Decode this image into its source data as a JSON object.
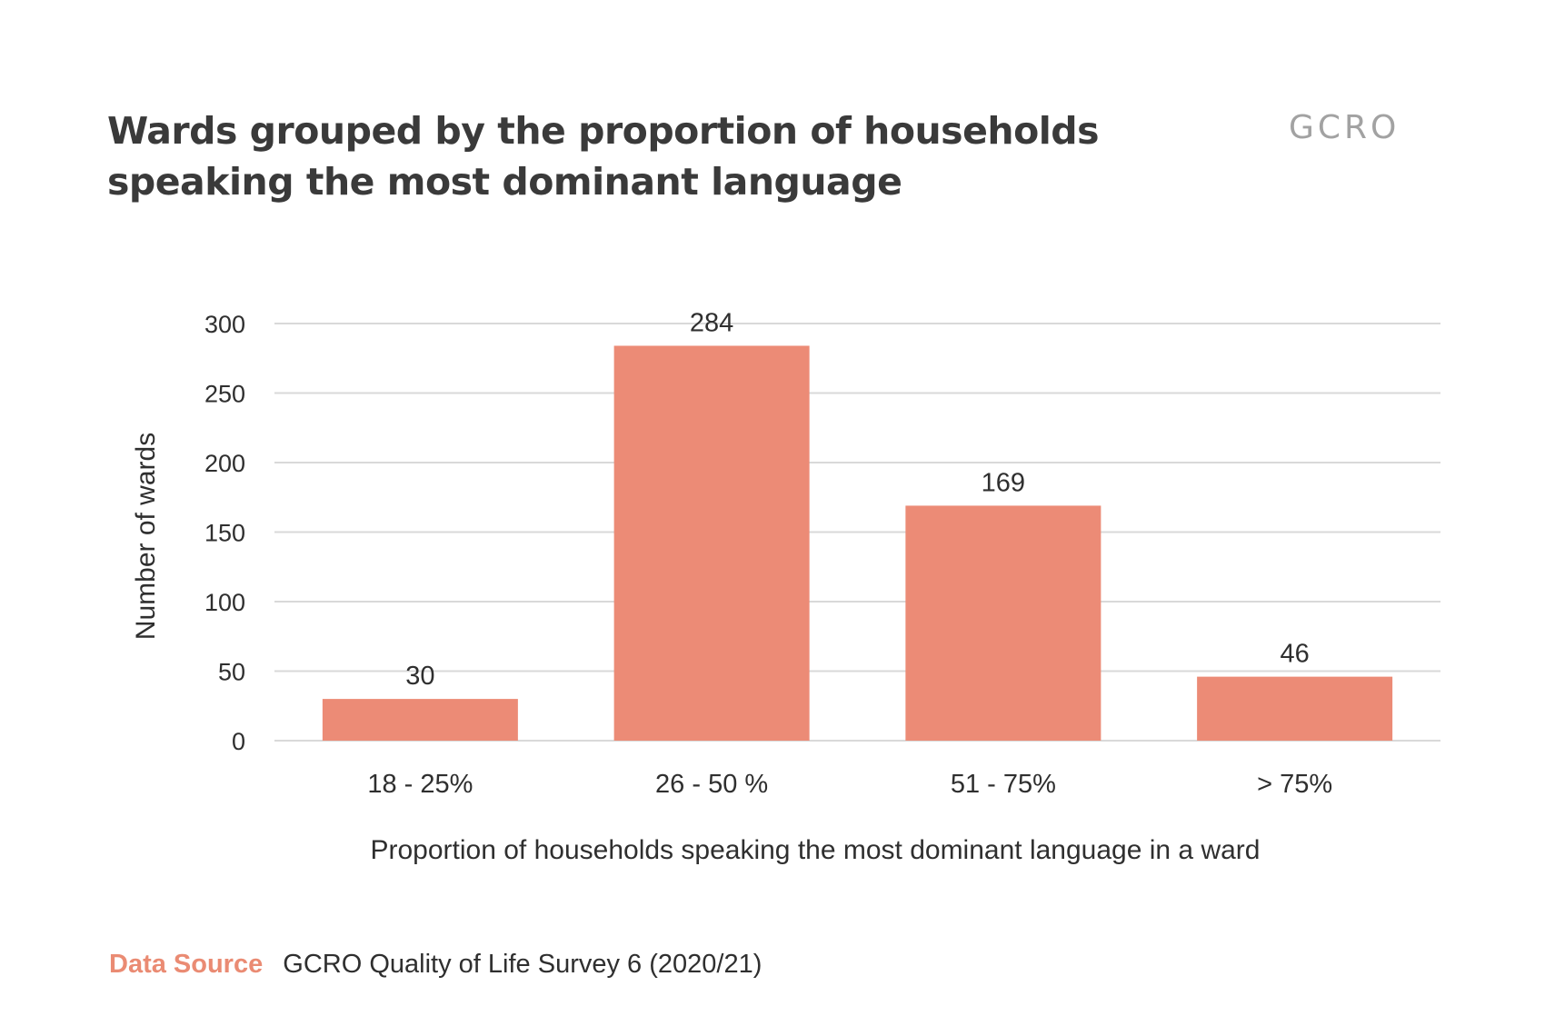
{
  "title": "Wards grouped by the proportion of households speaking the most dominant language",
  "logo_text": "GCRO",
  "source": {
    "label": "Data Source",
    "text": "GCRO Quality of Life Survey 6 (2020/21)"
  },
  "colors": {
    "bar": "#ec8b76",
    "grid": "#d9d9d9",
    "source_label": "#ea8b73",
    "logo": "#a2a2a2"
  },
  "chart_data": {
    "type": "bar",
    "categories": [
      "18 - 25%",
      "26 - 50 %",
      "51 - 75%",
      "> 75%"
    ],
    "values": [
      30,
      284,
      169,
      46
    ],
    "data_labels": [
      "30",
      "284",
      "169",
      "46"
    ],
    "xlabel": "Proportion of households speaking the most dominant language in a ward",
    "ylabel": "Number of wards",
    "ylim": [
      0,
      300
    ],
    "yticks": [
      0,
      50,
      100,
      150,
      200,
      250,
      300
    ],
    "grid": true,
    "legend": "none"
  }
}
